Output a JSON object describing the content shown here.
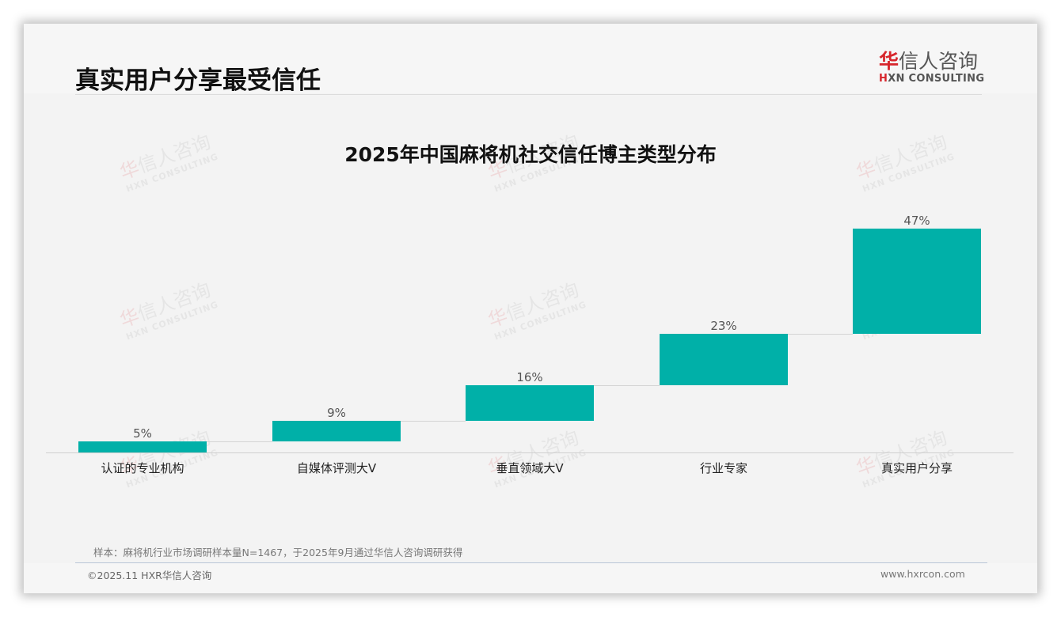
{
  "header": {
    "page_title": "真实用户分享最受信任",
    "logo": {
      "cn_first": "华",
      "cn_rest": "信人咨询",
      "en_first": "H",
      "en_rest": "XN CONSULTING"
    }
  },
  "watermark": {
    "cn_first": "华",
    "cn_rest": "信人咨询",
    "en": "HXN CONSULTING"
  },
  "colors": {
    "bar": "#00b0a8",
    "logo_accent": "#d7262c",
    "background": "#f3f3f3"
  },
  "chart_data": {
    "type": "bar",
    "subtype": "waterfall",
    "title": "2025年中国麻将机社交信任博主类型分布",
    "categories": [
      "认证的专业机构",
      "自媒体评测大V",
      "垂直领域大V",
      "行业专家",
      "真实用户分享"
    ],
    "values": [
      5,
      9,
      16,
      23,
      47
    ],
    "value_labels": [
      "5%",
      "9%",
      "16%",
      "23%",
      "47%"
    ],
    "cumulative_start": [
      0,
      5,
      14,
      30,
      53
    ],
    "unit": "%",
    "xlabel": "",
    "ylabel": "",
    "ylim": [
      0,
      100
    ],
    "grid": false,
    "legend": null,
    "color": "#00b0a8"
  },
  "footer": {
    "note": "样本：麻将机行业市场调研样本量N=1467，于2025年9月通过华信人咨询调研获得",
    "copyright": "©2025.11 HXR华信人咨询",
    "website": "www.hxrcon.com"
  }
}
